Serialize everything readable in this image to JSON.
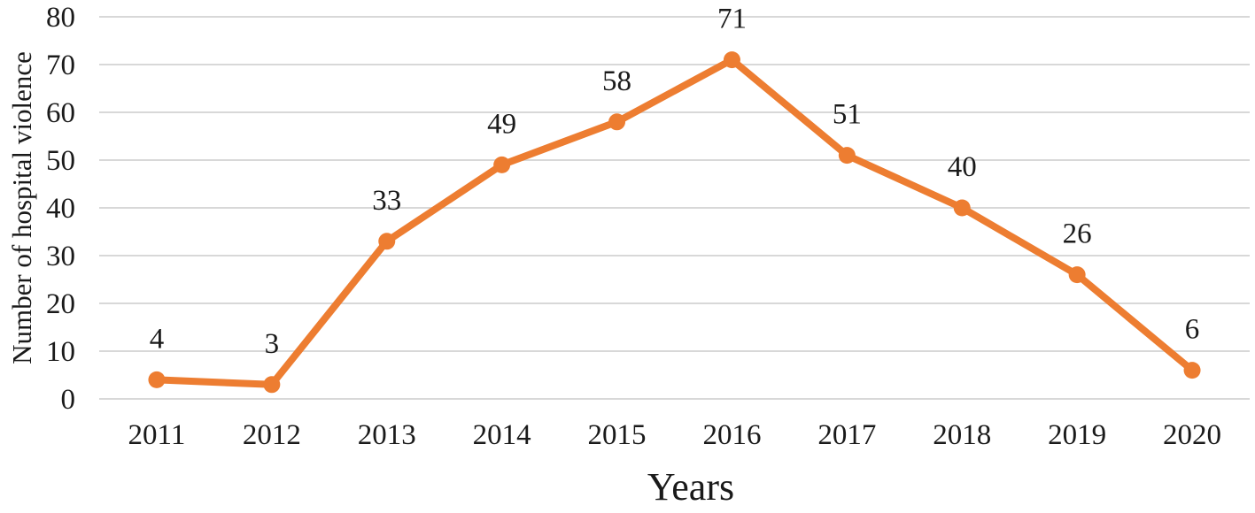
{
  "chart_data": {
    "type": "line",
    "title": "",
    "xlabel": "Years",
    "ylabel": "Number of hospital violence",
    "categories": [
      "2011",
      "2012",
      "2013",
      "2014",
      "2015",
      "2016",
      "2017",
      "2018",
      "2019",
      "2020"
    ],
    "values": [
      4,
      3,
      33,
      49,
      58,
      71,
      51,
      40,
      26,
      6
    ],
    "data_labels": [
      "4",
      "3",
      "33",
      "49",
      "58",
      "71",
      "51",
      "40",
      "26",
      "6"
    ],
    "ylim": [
      0,
      80
    ],
    "yticks": [
      0,
      10,
      20,
      30,
      40,
      50,
      60,
      70,
      80
    ],
    "grid": "horizontal",
    "legend": "none",
    "marker": "circle",
    "colors": {
      "line": "#ED7D31",
      "marker": "#ED7D31",
      "gridline": "#D8D8D8",
      "text": "#1A1A1A"
    }
  }
}
